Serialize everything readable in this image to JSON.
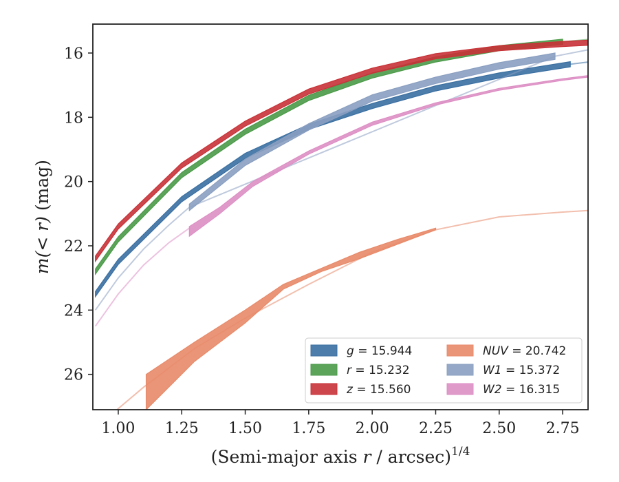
{
  "chart_data": {
    "type": "line",
    "xlabel_prefix": "(Semi-major axis ",
    "xlabel_var": "r",
    "xlabel_suffix": " / arcsec)",
    "xlabel_sup": "1/4",
    "ylabel_prefix": "m(< r)",
    "ylabel_suffix": " (mag)",
    "xlim": [
      0.9,
      2.85
    ],
    "ylim": [
      27.1,
      15.1
    ],
    "y_inverted": true,
    "grid": false,
    "legend_position": "lower-right",
    "xticks": [
      1.0,
      1.25,
      1.5,
      1.75,
      2.0,
      2.25,
      2.5,
      2.75
    ],
    "xtick_labels": [
      "1.00",
      "1.25",
      "1.50",
      "1.75",
      "2.00",
      "2.25",
      "2.50",
      "2.75"
    ],
    "yticks": [
      16,
      18,
      20,
      22,
      24,
      26
    ],
    "ytick_labels": [
      "16",
      "18",
      "20",
      "22",
      "24",
      "26"
    ],
    "series": [
      {
        "name": "g = 15.944",
        "var": "g",
        "value": "15.944",
        "color": "#3a6fa1",
        "measured": {
          "x": [
            0.91,
            1.0,
            1.25,
            1.5,
            1.75,
            2.0,
            2.25,
            2.5,
            2.78
          ],
          "y": [
            23.5,
            22.5,
            20.55,
            19.2,
            18.3,
            17.65,
            17.1,
            16.7,
            16.35
          ]
        },
        "band": 0.08,
        "extrap": {
          "x": [
            2.78,
            2.85
          ],
          "y": [
            16.35,
            16.28
          ]
        }
      },
      {
        "name": "r = 15.232",
        "var": "r",
        "value": "15.232",
        "color": "#4a9a48",
        "measured": {
          "x": [
            0.91,
            1.0,
            1.25,
            1.5,
            1.75,
            2.0,
            2.25,
            2.5,
            2.75
          ],
          "y": [
            22.8,
            21.8,
            19.8,
            18.45,
            17.4,
            16.7,
            16.2,
            15.85,
            15.65
          ]
        },
        "band": 0.08,
        "extrap": {
          "x": [
            2.75,
            2.85
          ],
          "y": [
            15.65,
            15.58
          ]
        }
      },
      {
        "name": "z = 15.560",
        "var": "z",
        "value": "15.560",
        "color": "#c83237",
        "measured": {
          "x": [
            0.91,
            1.0,
            1.25,
            1.5,
            1.75,
            2.0,
            2.25,
            2.5,
            2.75,
            2.85
          ],
          "y": [
            22.4,
            21.4,
            19.5,
            18.2,
            17.2,
            16.55,
            16.1,
            15.85,
            15.72,
            15.68
          ]
        },
        "band": 0.08,
        "extrap": {
          "x": [],
          "y": []
        }
      },
      {
        "name": "NUV = 20.742",
        "var": "NUV",
        "value": "20.742",
        "color": "#e88a69",
        "measured": {
          "x": [
            1.11,
            1.3,
            1.5,
            1.65,
            1.8,
            1.95,
            2.1,
            2.25
          ],
          "lower": [
            26.0,
            25.0,
            24.0,
            23.2,
            22.7,
            22.2,
            21.8,
            21.45
          ],
          "upper": [
            27.1,
            25.6,
            24.4,
            23.35,
            22.8,
            22.4,
            21.95,
            21.5
          ]
        },
        "extrap": {
          "x": [
            0.98,
            1.1,
            1.3,
            1.5,
            1.75,
            2.0,
            2.25,
            2.5,
            2.75,
            2.85
          ],
          "y": [
            27.2,
            26.4,
            25.2,
            24.25,
            23.2,
            22.2,
            21.5,
            21.1,
            20.95,
            20.9
          ]
        }
      },
      {
        "name": "W1 = 15.372",
        "var": "W1",
        "value": "15.372",
        "color": "#8a9fc1",
        "measured": {
          "x": [
            1.28,
            1.5,
            1.75,
            2.0,
            2.25,
            2.5,
            2.72
          ],
          "y": [
            20.8,
            19.4,
            18.3,
            17.4,
            16.85,
            16.4,
            16.1
          ]
        },
        "band": 0.1,
        "extrap": {
          "x": [
            0.91,
            1.0,
            1.1,
            1.2,
            1.28,
            2.72,
            2.85
          ],
          "y": [
            24.0,
            23.0,
            22.1,
            21.35,
            20.8,
            16.1,
            15.9
          ]
        }
      },
      {
        "name": "W2 = 16.315",
        "var": "W2",
        "value": "16.315",
        "color": "#dd8fc4",
        "measured": {
          "x": [
            1.28,
            1.4,
            1.53,
            1.75,
            2.0,
            2.25,
            2.5,
            2.75,
            2.85
          ],
          "lower": [
            21.4,
            20.8,
            20.0,
            19.05,
            18.15,
            17.55,
            17.1,
            16.8,
            16.7
          ],
          "upper": [
            21.7,
            21.0,
            20.15,
            19.15,
            18.25,
            17.62,
            17.16,
            16.85,
            16.75
          ]
        },
        "extrap": {
          "x": [
            0.91,
            1.0,
            1.1,
            1.2,
            1.28
          ],
          "y": [
            24.5,
            23.5,
            22.6,
            21.9,
            21.45
          ]
        }
      }
    ],
    "legend_columns": [
      [
        "g",
        "r",
        "z"
      ],
      [
        "NUV",
        "W1",
        "W2"
      ]
    ]
  }
}
